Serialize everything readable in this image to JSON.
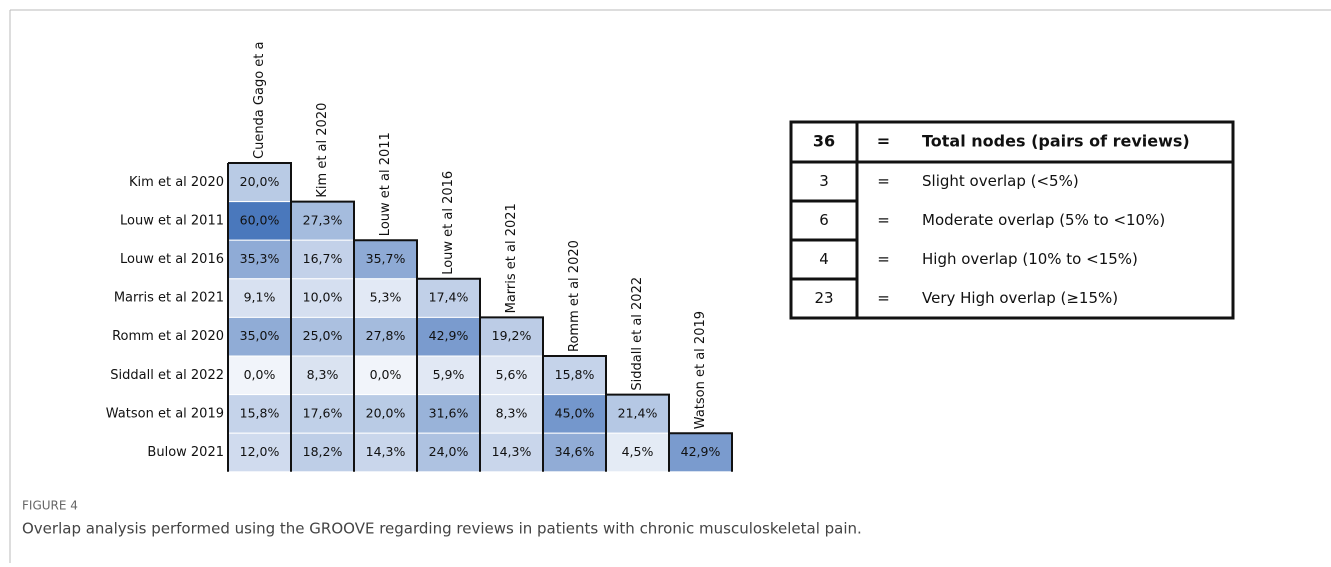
{
  "figure": {
    "row_labels": [
      "Kim et al 2020",
      "Louw et al 2011",
      "Louw et al 2016",
      "Marris et al 2021",
      "Romm et al 2020",
      "Siddall et al 2022",
      "Watson et al 2019",
      "Bulow 2021"
    ],
    "column_labels": [
      "Cuenda Gago et a",
      "Kim et al 2020",
      "Louw et al 2011",
      "Louw et al 2016",
      "Marris et al 2021",
      "Romm et al 2020",
      "Siddall et al 2022",
      "Watson et al 2019"
    ],
    "cells": [
      [
        "20,0%"
      ],
      [
        "60,0%",
        "27,3%"
      ],
      [
        "35,3%",
        "16,7%",
        "35,7%"
      ],
      [
        "9,1%",
        "10,0%",
        "5,3%",
        "17,4%"
      ],
      [
        "35,0%",
        "25,0%",
        "27,8%",
        "42,9%",
        "19,2%"
      ],
      [
        "0,0%",
        "8,3%",
        "0,0%",
        "5,9%",
        "5,6%",
        "15,8%"
      ],
      [
        "15,8%",
        "17,6%",
        "20,0%",
        "31,6%",
        "8,3%",
        "45,0%",
        "21,4%"
      ],
      [
        "12,0%",
        "18,2%",
        "14,3%",
        "24,0%",
        "14,3%",
        "34,6%",
        "4,5%",
        "42,9%"
      ]
    ],
    "legend_table": {
      "header": [
        36,
        "=",
        "Total nodes (pairs of reviews)"
      ],
      "rows": [
        [
          3,
          "=",
          "Slight overlap (<5%)"
        ],
        [
          6,
          "=",
          "Moderate overlap (5% to <10%)"
        ],
        [
          4,
          "=",
          "High overlap (10% to <15%)"
        ],
        [
          23,
          "=",
          "Very High overlap (≥15%)"
        ]
      ]
    },
    "caption_label": "FIGURE 4",
    "caption": "Overlap analysis performed using the GROOVE regarding reviews in patients with chronic musculoskeletal pain."
  }
}
